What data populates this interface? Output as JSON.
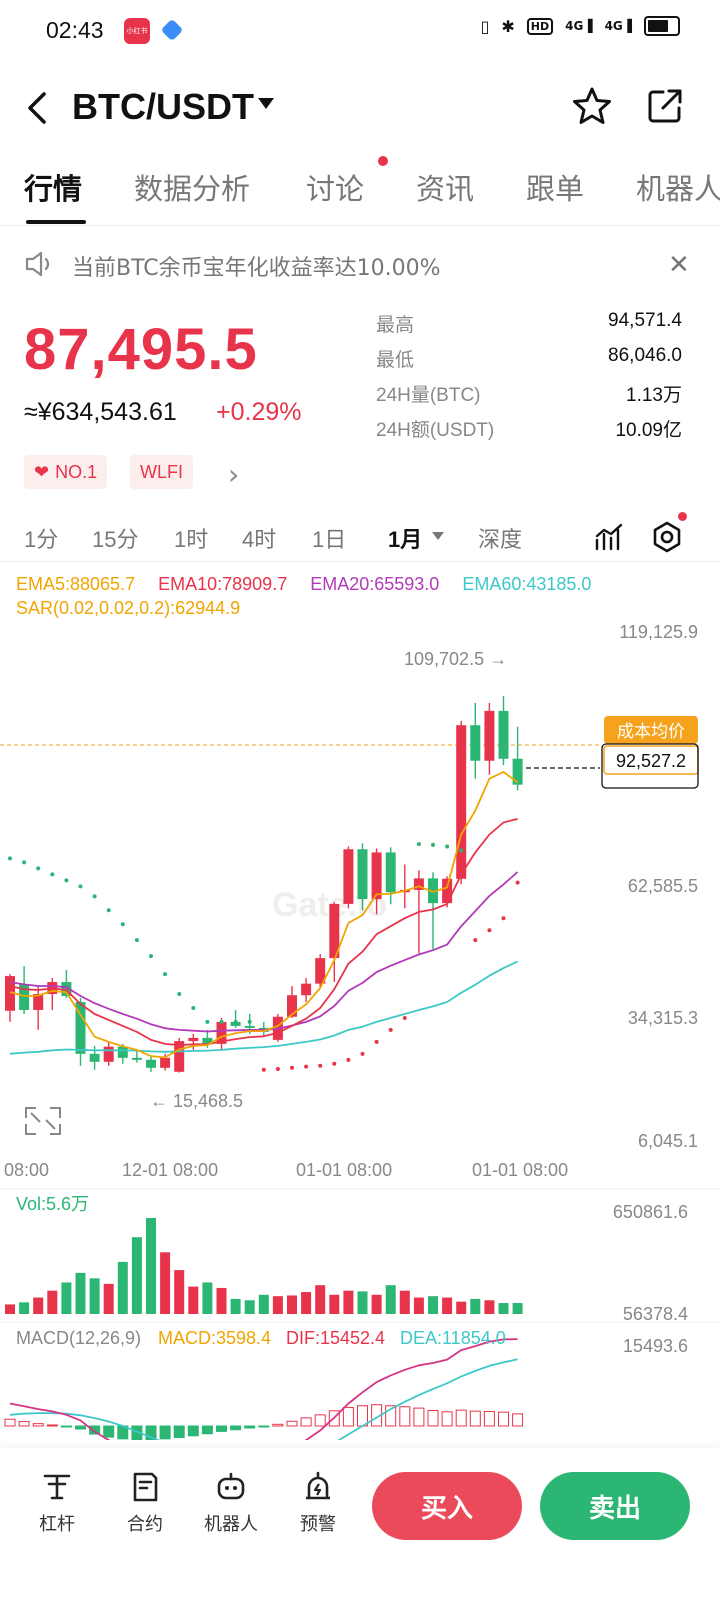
{
  "status_bar": {
    "time": "02:43",
    "app_badge": "小红书",
    "right_icons": [
      "vibrate-icon",
      "bluetooth-icon",
      "hd-icon",
      "signal-4g-icon",
      "signal-4g-icon",
      "battery-icon"
    ]
  },
  "header": {
    "pair": "BTC/USDT"
  },
  "tabs": [
    "行情",
    "数据分析",
    "讨论",
    "资讯",
    "跟单",
    "机器人"
  ],
  "notice": {
    "text": "当前BTC余币宝年化收益率达10.00%"
  },
  "ticker": {
    "last_price": "87,495.5",
    "cny_price": "≈¥634,543.61",
    "change_pct": "+0.29%",
    "stats": [
      {
        "label": "最高",
        "value": "94,571.4"
      },
      {
        "label": "最低",
        "value": "86,046.0"
      },
      {
        "label": "24H量(BTC)",
        "value": "1.13万"
      },
      {
        "label": "24H额(USDT)",
        "value": "10.09亿"
      }
    ],
    "tags": [
      "NO.1",
      "WLFI"
    ]
  },
  "intervals": [
    "1分",
    "15分",
    "1时",
    "4时",
    "1日",
    "1月",
    "深度"
  ],
  "ema": {
    "ema5": "EMA5:88065.7",
    "ema10": "EMA10:78909.7",
    "ema20": "EMA20:65593.0",
    "ema60": "EMA60:43185.0",
    "sar": "SAR(0.02,0.02,0.2):62944.9"
  },
  "colors": {
    "up": "#e8344a",
    "down": "#2bb673",
    "ema5": "#f0a500",
    "ema10": "#e8344a",
    "ema20": "#b23ab8",
    "ema60": "#3cc8c8",
    "sar_up": "#e8344a",
    "sar_down": "#2bb673"
  },
  "chart_data": {
    "type": "candlestick",
    "y_axis_ticks": [
      "119,125.9",
      "62,585.5",
      "34,315.3",
      "6,045.1"
    ],
    "x_axis_ticks": [
      "08:00",
      "12-01 08:00",
      "01-01 08:00",
      "01-01 08:00"
    ],
    "high_marker": "109,702.5 →",
    "low_marker": "← 15,468.5",
    "cost_label": "成本均价",
    "cost_value": "92,527.2",
    "watermark": "Gate.io",
    "candles": [
      {
        "o": 30800,
        "h": 40000,
        "l": 28000,
        "c": 39500
      },
      {
        "o": 37500,
        "h": 42000,
        "l": 30000,
        "c": 31000
      },
      {
        "o": 31000,
        "h": 37000,
        "l": 26000,
        "c": 35000
      },
      {
        "o": 35000,
        "h": 39000,
        "l": 31000,
        "c": 38000
      },
      {
        "o": 38000,
        "h": 41000,
        "l": 34000,
        "c": 34500
      },
      {
        "o": 33000,
        "h": 34000,
        "l": 17000,
        "c": 20000
      },
      {
        "o": 20000,
        "h": 22000,
        "l": 16000,
        "c": 18000
      },
      {
        "o": 18000,
        "h": 23000,
        "l": 17000,
        "c": 21800
      },
      {
        "o": 21800,
        "h": 22500,
        "l": 17500,
        "c": 19000
      },
      {
        "o": 19000,
        "h": 21000,
        "l": 17800,
        "c": 18500
      },
      {
        "o": 18500,
        "h": 19500,
        "l": 15468.5,
        "c": 16500
      },
      {
        "o": 16500,
        "h": 20000,
        "l": 15800,
        "c": 19000
      },
      {
        "o": 15500,
        "h": 24000,
        "l": 15300,
        "c": 23200
      },
      {
        "o": 23200,
        "h": 25000,
        "l": 21000,
        "c": 24000
      },
      {
        "o": 24000,
        "h": 26000,
        "l": 21500,
        "c": 22500
      },
      {
        "o": 22500,
        "h": 29000,
        "l": 21000,
        "c": 28000
      },
      {
        "o": 28000,
        "h": 31000,
        "l": 26500,
        "c": 27000
      },
      {
        "o": 27000,
        "h": 30000,
        "l": 25000,
        "c": 26500
      },
      {
        "o": 26500,
        "h": 28000,
        "l": 24500,
        "c": 25500
      },
      {
        "o": 23500,
        "h": 30000,
        "l": 23000,
        "c": 29300
      },
      {
        "o": 29300,
        "h": 37000,
        "l": 29000,
        "c": 34700
      },
      {
        "o": 34700,
        "h": 39000,
        "l": 33000,
        "c": 37600
      },
      {
        "o": 37600,
        "h": 45000,
        "l": 36500,
        "c": 44000
      },
      {
        "o": 44000,
        "h": 58000,
        "l": 38000,
        "c": 57600
      },
      {
        "o": 57600,
        "h": 72000,
        "l": 56500,
        "c": 71300
      },
      {
        "o": 71300,
        "h": 72800,
        "l": 56000,
        "c": 58800
      },
      {
        "o": 58800,
        "h": 71500,
        "l": 55000,
        "c": 70500
      },
      {
        "o": 70500,
        "h": 71800,
        "l": 57500,
        "c": 60500
      },
      {
        "o": 60500,
        "h": 67500,
        "l": 56500,
        "c": 61100
      },
      {
        "o": 61100,
        "h": 66000,
        "l": 45200,
        "c": 64000
      },
      {
        "o": 64000,
        "h": 65500,
        "l": 46200,
        "c": 57800
      },
      {
        "o": 57800,
        "h": 64500,
        "l": 56700,
        "c": 63900
      },
      {
        "o": 63900,
        "h": 103500,
        "l": 62500,
        "c": 102400
      },
      {
        "o": 102400,
        "h": 108000,
        "l": 89000,
        "c": 93500
      },
      {
        "o": 93500,
        "h": 108000,
        "l": 90000,
        "c": 106000
      },
      {
        "o": 106000,
        "h": 109702.5,
        "l": 92400,
        "c": 94000
      },
      {
        "o": 94000,
        "h": 102000,
        "l": 86046,
        "c": 87495.5
      }
    ],
    "ema5": [
      35500,
      34500,
      34600,
      35800,
      35400,
      29800,
      24300,
      23000,
      21900,
      21000,
      19400,
      19100,
      21100,
      22000,
      22200,
      24300,
      25200,
      25700,
      25700,
      27000,
      29900,
      32400,
      36500,
      43500,
      52800,
      54800,
      60000,
      60100,
      60900,
      62000,
      60600,
      61700,
      75000,
      81000,
      89000,
      90700,
      88065.7
    ],
    "ema10": [
      37000,
      36200,
      36000,
      36400,
      36000,
      32500,
      30000,
      28500,
      27000,
      25500,
      23500,
      22500,
      22200,
      22400,
      22400,
      23100,
      23700,
      24200,
      24400,
      25300,
      27000,
      28800,
      31500,
      36200,
      42600,
      45600,
      50000,
      52000,
      54000,
      55600,
      56200,
      57600,
      65000,
      70500,
      75000,
      78000,
      78909.7
    ],
    "ema20": [
      38000,
      37400,
      37000,
      37000,
      36700,
      34500,
      32700,
      31300,
      30000,
      28800,
      27400,
      26400,
      26000,
      25800,
      25600,
      25800,
      25900,
      26000,
      26000,
      26300,
      27100,
      28000,
      29400,
      32000,
      35800,
      37800,
      40500,
      42100,
      43500,
      44900,
      46000,
      47400,
      52000,
      55800,
      59600,
      62500,
      65593.0
    ],
    "ema60": [
      20000,
      20300,
      20500,
      20900,
      21100,
      21000,
      20900,
      20900,
      20900,
      20800,
      20600,
      20500,
      20600,
      20700,
      20800,
      21000,
      21300,
      21500,
      21700,
      22000,
      22500,
      23000,
      23600,
      24600,
      26000,
      26800,
      28000,
      29000,
      30000,
      31000,
      31900,
      33000,
      35300,
      37300,
      39600,
      41500,
      43185.0
    ],
    "sar": [
      69000,
      68000,
      66500,
      65000,
      63500,
      62000,
      59500,
      56000,
      52500,
      48500,
      44500,
      40000,
      35000,
      31500,
      28000,
      28000,
      28000,
      28000,
      16000,
      16200,
      16500,
      16800,
      17000,
      17500,
      18500,
      20000,
      23000,
      26000,
      29000,
      72600,
      72400,
      72000,
      71000,
      48500,
      51000,
      54000,
      62944.9
    ],
    "sar_dir": [
      "d",
      "d",
      "d",
      "d",
      "d",
      "d",
      "d",
      "d",
      "d",
      "d",
      "d",
      "d",
      "d",
      "d",
      "d",
      "d",
      "d",
      "d",
      "u",
      "u",
      "u",
      "u",
      "u",
      "u",
      "u",
      "u",
      "u",
      "u",
      "u",
      "d",
      "d",
      "d",
      "d",
      "u",
      "u",
      "u",
      "u"
    ],
    "volume": {
      "label": "Vol:5.6万",
      "ticks": [
        "650861.6",
        "56378.4"
      ],
      "values": [
        70000,
        85000,
        120000,
        170000,
        230000,
        300000,
        260000,
        220000,
        380000,
        560000,
        700000,
        450000,
        320000,
        200000,
        230000,
        190000,
        110000,
        100000,
        140000,
        130000,
        135000,
        160000,
        210000,
        140000,
        170000,
        165000,
        140000,
        210000,
        170000,
        120000,
        130000,
        120000,
        90000,
        110000,
        100000,
        80000,
        80000
      ]
    },
    "macd": {
      "label": "MACD(12,26,9)",
      "macd": "MACD:3598.4",
      "dif": "DIF:15452.4",
      "dea": "DEA:11854.0",
      "tick": "15493.6",
      "dif_values": [
        4000,
        3500,
        3000,
        2600,
        2000,
        1000,
        -1000,
        -2500,
        -3800,
        -5000,
        -6000,
        -6800,
        -7200,
        -7400,
        -7300,
        -7000,
        -6700,
        -6400,
        -6000,
        -5200,
        -4000,
        -2500,
        -800,
        1500,
        4000,
        6000,
        7800,
        9000,
        10000,
        10800,
        11200,
        11800,
        13500,
        14200,
        15000,
        15400,
        15452.4
      ],
      "dea_values": [
        2000,
        2200,
        2300,
        2300,
        2200,
        1900,
        1400,
        800,
        0,
        -1000,
        -2000,
        -3000,
        -3800,
        -4500,
        -5000,
        -5400,
        -5600,
        -5800,
        -5800,
        -5700,
        -5400,
        -4900,
        -4100,
        -3000,
        -1500,
        0,
        1500,
        3000,
        4300,
        5500,
        6600,
        7600,
        8800,
        9800,
        10700,
        11300,
        11854.0
      ],
      "hist_values": [
        2000,
        1300,
        700,
        300,
        -200,
        -900,
        -2400,
        -3300,
        -3800,
        -4000,
        -4000,
        -3800,
        -3400,
        -2900,
        -2300,
        -1600,
        -1100,
        -600,
        -200,
        500,
        1400,
        2400,
        3300,
        4500,
        5500,
        6000,
        6300,
        6000,
        5700,
        5300,
        4600,
        4200,
        4700,
        4400,
        4300,
        4100,
        3598.4
      ]
    }
  },
  "bottom_bar": {
    "tools": [
      {
        "icon": "leverage-icon",
        "label": "杠杆"
      },
      {
        "icon": "contract-icon",
        "label": "合约"
      },
      {
        "icon": "robot-icon",
        "label": "机器人"
      },
      {
        "icon": "alarm-icon",
        "label": "预警"
      }
    ],
    "buy_label": "买入",
    "sell_label": "卖出"
  }
}
